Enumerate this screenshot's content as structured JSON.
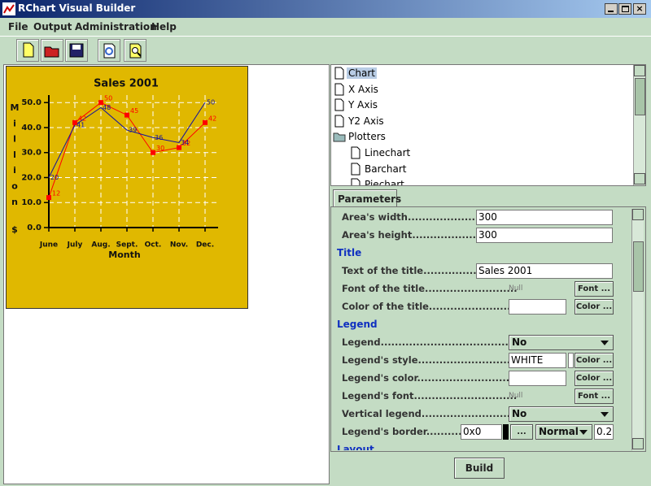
{
  "window": {
    "title": "RChart Visual Builder"
  },
  "menu": [
    "File",
    "Output",
    "Administration",
    "Help"
  ],
  "chart_data": {
    "type": "line",
    "title": "Sales 2001",
    "xlabel": "Month",
    "ylabel": "Million",
    "ylabel_unit": "$",
    "categories": [
      "June",
      "July",
      "Aug.",
      "Sept.",
      "Oct.",
      "Nov.",
      "Dec."
    ],
    "series": [
      {
        "color": "#ff0000",
        "values": [
          12,
          42,
          50,
          45,
          30,
          32,
          42
        ]
      },
      {
        "color": "#1010a0",
        "values": [
          20,
          41,
          48,
          39,
          36,
          34,
          50
        ]
      }
    ],
    "ylim": [
      0,
      53
    ],
    "yticks": [
      {
        "value": 0,
        "label": "0.0"
      },
      {
        "value": 10,
        "label": "10.0"
      },
      {
        "value": 20,
        "label": "20.0"
      },
      {
        "value": 30,
        "label": "30.0"
      },
      {
        "value": 40,
        "label": "40.0"
      },
      {
        "value": 50,
        "label": "50.0"
      }
    ],
    "grid": true,
    "background": "#e0b800"
  },
  "tree": [
    "Chart",
    "X Axis",
    "Y Axis",
    "Y2 Axis",
    "Plotters",
    "Linechart",
    "Barchart",
    "Piechart"
  ],
  "params": {
    "tab": "Parameters",
    "rows": [
      {
        "label": "Area's width.............................",
        "field": "300"
      },
      {
        "label": "Area's height..........................",
        "field": "300"
      },
      {
        "section": "Title"
      },
      {
        "label": "Text of the title.........................",
        "field": "Sales 2001"
      },
      {
        "label": "Font of the title..........................",
        "null": "Null",
        "button": "Font ..."
      },
      {
        "label": "Color of the title.......................",
        "button": "Color ..."
      },
      {
        "section": "Legend"
      },
      {
        "label": "Legend.........................................",
        "select": "No"
      },
      {
        "label": "Legend's style..........................",
        "field": "WHITE",
        "button": "Color ..."
      },
      {
        "label": "Legend's color..........................",
        "button": "Color ..."
      },
      {
        "label": "Legend's font.............................",
        "null": "Null",
        "button": "Font ..."
      },
      {
        "label": "Vertical legend..........................",
        "select": "No"
      },
      {
        "label": "Legend's border..............",
        "field": "0x0",
        "button": "...",
        "select": "Normal",
        "width": "0.2"
      },
      {
        "section": "Layout"
      }
    ],
    "build": "Build"
  }
}
